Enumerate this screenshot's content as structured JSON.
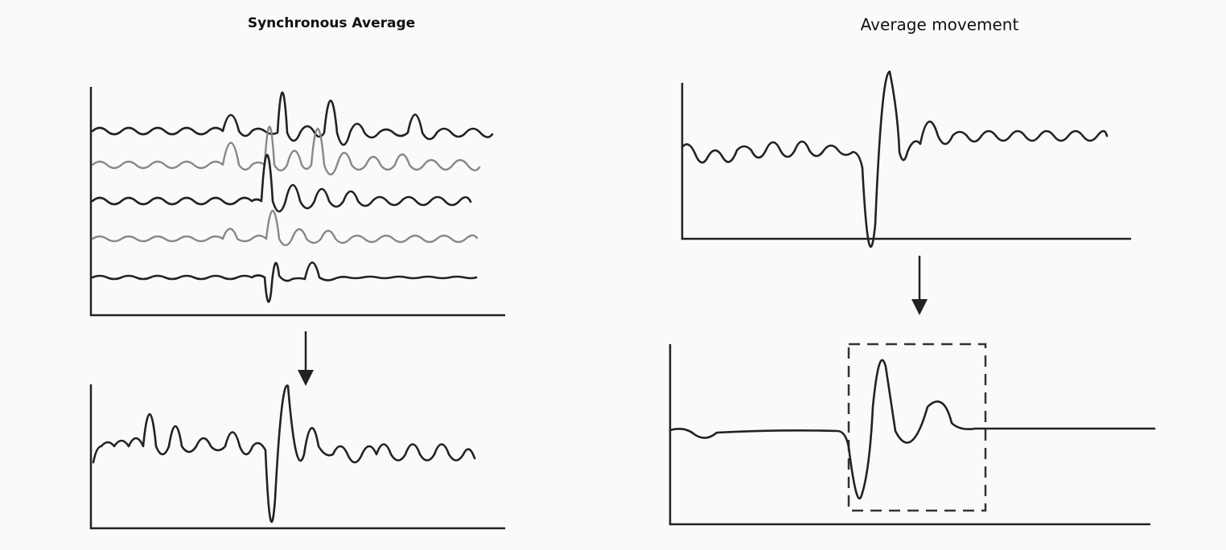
{
  "left": {
    "title": "Synchronous Average"
  },
  "right": {
    "title": "Average movement"
  }
}
